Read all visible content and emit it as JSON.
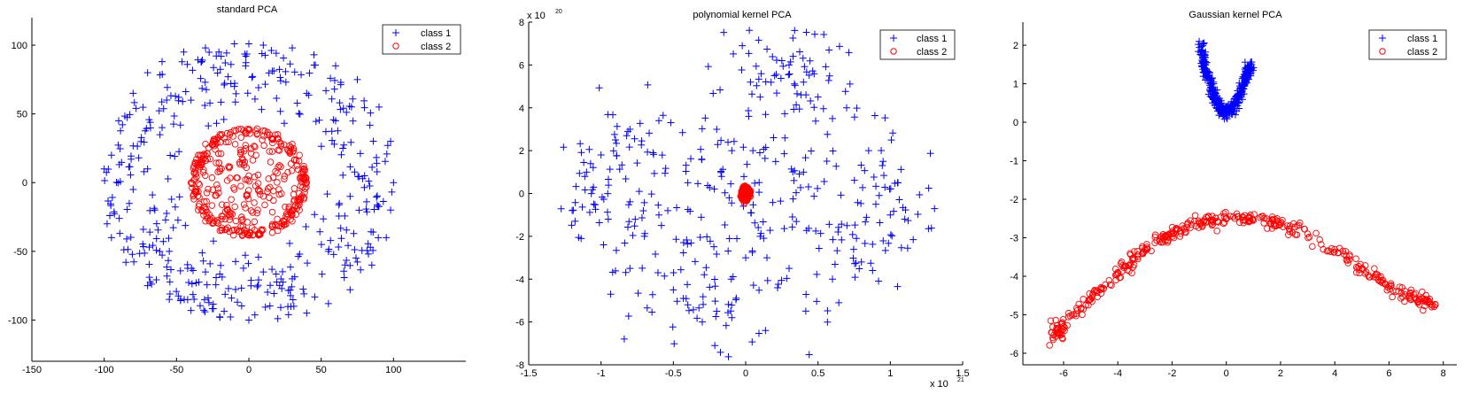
{
  "colors": {
    "class1": "#0000ff",
    "class2": "#ff0000",
    "axis": "#000000"
  },
  "chart_data": [
    {
      "type": "scatter",
      "title": "standard PCA",
      "xlim": [
        -150,
        150
      ],
      "ylim": [
        -130,
        120
      ],
      "xticks": [
        -150,
        -100,
        -50,
        0,
        50,
        100
      ],
      "yticks": [
        -100,
        -50,
        0,
        50,
        100
      ],
      "legend": {
        "placement": "top-right",
        "entries": [
          "class 1",
          "class 2"
        ]
      },
      "series": [
        {
          "name": "class 1",
          "marker": "plus",
          "color": "#0000ff",
          "distribution": "ring",
          "center": [
            0,
            0
          ],
          "radius_range": [
            45,
            100
          ],
          "count": 420,
          "points": [
            [
              -100,
              10
            ],
            [
              -98,
              -30
            ],
            [
              -95,
              20
            ],
            [
              -90,
              45
            ],
            [
              -80,
              65
            ],
            [
              -70,
              80
            ],
            [
              -60,
              88
            ],
            [
              -45,
              95
            ],
            [
              -30,
              98
            ],
            [
              -10,
              101
            ],
            [
              0,
              101
            ],
            [
              10,
              100
            ],
            [
              30,
              98
            ],
            [
              45,
              93
            ],
            [
              60,
              85
            ],
            [
              75,
              75
            ],
            [
              90,
              55
            ],
            [
              98,
              30
            ],
            [
              100,
              0
            ],
            [
              98,
              -20
            ],
            [
              95,
              -40
            ],
            [
              85,
              -60
            ],
            [
              70,
              -78
            ],
            [
              55,
              -88
            ],
            [
              40,
              -95
            ],
            [
              20,
              -99
            ],
            [
              0,
              -100
            ],
            [
              -20,
              -98
            ],
            [
              -40,
              -93
            ],
            [
              -55,
              -85
            ],
            [
              -70,
              -75
            ],
            [
              -85,
              -58
            ],
            [
              -95,
              -40
            ],
            [
              -60,
              40
            ],
            [
              -55,
              -50
            ],
            [
              60,
              45
            ],
            [
              55,
              -50
            ],
            [
              -40,
              60
            ],
            [
              40,
              65
            ],
            [
              -30,
              -65
            ],
            [
              30,
              -70
            ],
            [
              -70,
              10
            ],
            [
              70,
              -10
            ],
            [
              -65,
              -20
            ],
            [
              65,
              25
            ],
            [
              -10,
              70
            ],
            [
              10,
              -65
            ],
            [
              -80,
              -5
            ],
            [
              80,
              5
            ]
          ]
        },
        {
          "name": "class 2",
          "marker": "circle",
          "color": "#ff0000",
          "distribution": "disk",
          "center": [
            0,
            0
          ],
          "radius_range": [
            0,
            40
          ],
          "count": 420,
          "points": [
            [
              -40,
              0
            ],
            [
              -38,
              12
            ],
            [
              -38,
              -12
            ],
            [
              -35,
              20
            ],
            [
              -35,
              -20
            ],
            [
              -30,
              28
            ],
            [
              -30,
              -28
            ],
            [
              -20,
              35
            ],
            [
              -20,
              -35
            ],
            [
              0,
              38
            ],
            [
              0,
              -38
            ],
            [
              20,
              35
            ],
            [
              20,
              -35
            ],
            [
              30,
              28
            ],
            [
              30,
              -28
            ],
            [
              35,
              20
            ],
            [
              35,
              -20
            ],
            [
              38,
              12
            ],
            [
              38,
              -12
            ],
            [
              40,
              0
            ],
            [
              -20,
              10
            ],
            [
              -10,
              -5
            ],
            [
              0,
              5
            ],
            [
              10,
              -10
            ],
            [
              15,
              15
            ],
            [
              -15,
              -20
            ],
            [
              5,
              20
            ],
            [
              -5,
              -25
            ]
          ]
        }
      ]
    },
    {
      "type": "scatter",
      "title": "polynomial kernel PCA",
      "x_scale_label": "x 10",
      "x_scale_exp": "21",
      "y_scale_label": "x 10",
      "y_scale_exp": "20",
      "xlim": [
        -1.5,
        1.5
      ],
      "ylim": [
        -8,
        8
      ],
      "xticks": [
        -1.5,
        -1,
        -0.5,
        0,
        0.5,
        1,
        1.5
      ],
      "yticks": [
        -8,
        -6,
        -4,
        -2,
        0,
        2,
        4,
        6,
        8
      ],
      "legend": {
        "placement": "top-right",
        "entries": [
          "class 1",
          "class 2"
        ]
      },
      "series": [
        {
          "name": "class 1",
          "marker": "plus",
          "color": "#0000ff",
          "distribution": "cloud",
          "count": 430,
          "points": [
            [
              -1.1,
              1
            ],
            [
              -1.05,
              -0.5
            ],
            [
              -1.0,
              1.8
            ],
            [
              -0.95,
              -1.2
            ],
            [
              -0.9,
              2.5
            ],
            [
              -0.8,
              3.0
            ],
            [
              -0.8,
              -3.5
            ],
            [
              -0.7,
              -2.0
            ],
            [
              -0.6,
              3.4
            ],
            [
              -0.5,
              -4.5
            ],
            [
              -0.4,
              -5.2
            ],
            [
              -0.3,
              -6.0
            ],
            [
              -0.2,
              -5.5
            ],
            [
              -0.1,
              -4.0
            ],
            [
              0,
              -3.0
            ],
            [
              0.05,
              2.0
            ],
            [
              0.1,
              4.5
            ],
            [
              0.2,
              5.5
            ],
            [
              0.25,
              6.2
            ],
            [
              0.3,
              6.0
            ],
            [
              0.4,
              5.2
            ],
            [
              0.5,
              4.5
            ],
            [
              0.6,
              3.5
            ],
            [
              0.7,
              -1.5
            ],
            [
              0.8,
              -3.2
            ],
            [
              0.85,
              2.0
            ],
            [
              0.9,
              -0.5
            ],
            [
              0.95,
              1.5
            ],
            [
              1.0,
              -1.0
            ],
            [
              1.05,
              0.5
            ],
            [
              1.1,
              -1.2
            ],
            [
              0.6,
              -4.0
            ],
            [
              0.3,
              -3.5
            ],
            [
              -0.2,
              3.0
            ],
            [
              -0.4,
              0.5
            ],
            [
              0.1,
              -2.0
            ],
            [
              0.4,
              1.0
            ],
            [
              -0.6,
              -1.0
            ]
          ]
        },
        {
          "name": "class 2",
          "marker": "circle",
          "color": "#ff0000",
          "distribution": "point-cluster",
          "count": 420,
          "points": [
            [
              0,
              0
            ]
          ]
        }
      ]
    },
    {
      "type": "scatter",
      "title": "Gaussian kernel PCA",
      "xlim": [
        -7.5,
        8.5
      ],
      "ylim": [
        -6.3,
        2.6
      ],
      "xticks": [
        -6,
        -4,
        -2,
        0,
        2,
        4,
        6,
        8
      ],
      "yticks": [
        -6,
        -5,
        -4,
        -3,
        -2,
        -1,
        0,
        1,
        2
      ],
      "legend": {
        "placement": "top-right",
        "entries": [
          "class 1",
          "class 2"
        ]
      },
      "series": [
        {
          "name": "class 1",
          "marker": "plus",
          "color": "#0000ff",
          "distribution": "v-shape",
          "count": 420,
          "points": [
            [
              -1.0,
              2.1
            ],
            [
              -0.8,
              1.5
            ],
            [
              -0.6,
              1.0
            ],
            [
              -0.4,
              0.6
            ],
            [
              -0.2,
              0.35
            ],
            [
              0,
              0.25
            ],
            [
              0.2,
              0.35
            ],
            [
              0.4,
              0.6
            ],
            [
              0.6,
              0.95
            ],
            [
              0.8,
              1.35
            ],
            [
              0.9,
              1.45
            ]
          ]
        },
        {
          "name": "class 2",
          "marker": "circle",
          "color": "#ff0000",
          "distribution": "arc",
          "count": 420,
          "points": [
            [
              -6.4,
              -5.6
            ],
            [
              -6,
              -5.3
            ],
            [
              -5,
              -4.6
            ],
            [
              -4,
              -3.9
            ],
            [
              -3,
              -3.3
            ],
            [
              -2,
              -2.9
            ],
            [
              -1,
              -2.6
            ],
            [
              0,
              -2.5
            ],
            [
              1,
              -2.55
            ],
            [
              2,
              -2.65
            ],
            [
              3,
              -2.9
            ],
            [
              4,
              -3.3
            ],
            [
              5,
              -3.8
            ],
            [
              6,
              -4.25
            ],
            [
              7,
              -4.6
            ],
            [
              7.6,
              -4.75
            ]
          ]
        }
      ]
    }
  ]
}
